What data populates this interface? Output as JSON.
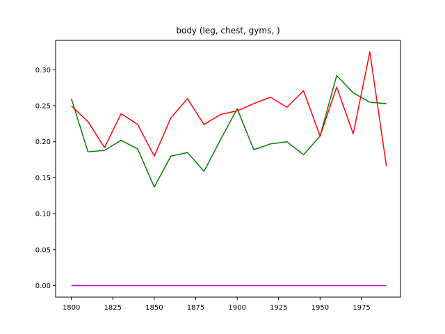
{
  "chart_data": {
    "type": "line",
    "title": "body (leg, chest, gyms, )",
    "xlabel": "",
    "ylabel": "",
    "xlim": [
      1790.5,
      1998.5
    ],
    "ylim": [
      -0.016,
      0.341
    ],
    "grid": false,
    "x": [
      1800,
      1810,
      1820,
      1830,
      1840,
      1850,
      1860,
      1870,
      1880,
      1890,
      1900,
      1910,
      1920,
      1930,
      1940,
      1950,
      1960,
      1970,
      1980,
      1990
    ],
    "xticks": [
      1800,
      1825,
      1850,
      1875,
      1900,
      1925,
      1950,
      1975
    ],
    "xtick_labels": [
      "1800",
      "1825",
      "1850",
      "1875",
      "1900",
      "1925",
      "1950",
      "1975"
    ],
    "yticks": [
      0.0,
      0.05,
      0.1,
      0.15,
      0.2,
      0.25,
      0.3
    ],
    "ytick_labels": [
      "0.00",
      "0.05",
      "0.10",
      "0.15",
      "0.20",
      "0.25",
      "0.30"
    ],
    "series": [
      {
        "color": "#008000",
        "values": [
          0.26,
          0.186,
          0.188,
          0.202,
          0.19,
          0.137,
          0.18,
          0.185,
          0.159,
          0.203,
          0.246,
          0.189,
          0.197,
          0.2,
          0.182,
          0.208,
          0.292,
          0.268,
          0.255,
          0.253
        ]
      },
      {
        "color": "#ff0000",
        "values": [
          0.25,
          0.228,
          0.192,
          0.239,
          0.224,
          0.18,
          0.233,
          0.26,
          0.224,
          0.238,
          0.243,
          0.253,
          0.262,
          0.248,
          0.271,
          0.208,
          0.276,
          0.211,
          0.325,
          0.166
        ]
      },
      {
        "color": "#bf00bf",
        "values": [
          0,
          0,
          0,
          0,
          0,
          0,
          0,
          0,
          0,
          0,
          0,
          0,
          0,
          0,
          0,
          0,
          0,
          0,
          0,
          0
        ]
      }
    ]
  }
}
